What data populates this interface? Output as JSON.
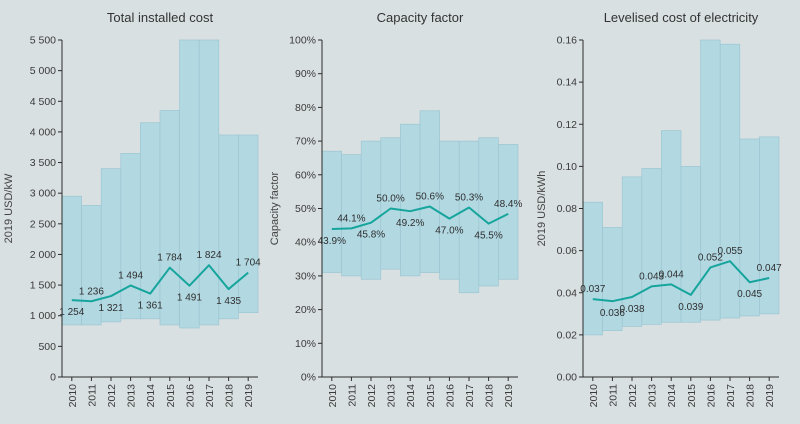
{
  "page": {
    "background": "#d9e0e2"
  },
  "colors": {
    "band_fill": "#b2d8e2",
    "band_stroke": "#9cc6d2",
    "line": "#16a59c",
    "axis_line": "#2b2b2b",
    "text": "#3a3a3a",
    "title": "#333333"
  },
  "chart_data": [
    {
      "type": "area",
      "subtype": "range-band-with-average-line",
      "title": "Total installed cost",
      "ylabel": "2019 USD/kW",
      "legend_position": "none",
      "grid": false,
      "categories": [
        "2010",
        "2011",
        "2012",
        "2013",
        "2014",
        "2015",
        "2016",
        "2017",
        "2018",
        "2019"
      ],
      "ylim": [
        0,
        5500
      ],
      "y_tick_step": 500,
      "y_tick_labels": [
        "0",
        "500",
        "1 000",
        "1 500",
        "2 000",
        "2 500",
        "3 000",
        "3 500",
        "4 000",
        "4 500",
        "5 000",
        "5 500"
      ],
      "band_low": [
        850,
        850,
        900,
        950,
        950,
        850,
        800,
        850,
        950,
        1050
      ],
      "band_high": [
        2950,
        2800,
        3400,
        3650,
        4150,
        4350,
        5500,
        5500,
        3950,
        3950
      ],
      "series": [
        {
          "name": "weighted-average",
          "values": [
            1254,
            1236,
            1321,
            1494,
            1361,
            1784,
            1491,
            1824,
            1435,
            1704
          ]
        }
      ],
      "point_labels": [
        "1 254",
        "1 236",
        "1 321",
        "1 494",
        "1 361",
        "1 784",
        "1 491",
        "1 824",
        "1 435",
        "1 704"
      ],
      "label_side": [
        "below",
        "above",
        "below",
        "above",
        "below",
        "above",
        "below",
        "above",
        "below",
        "above"
      ]
    },
    {
      "type": "area",
      "subtype": "range-band-with-average-line",
      "title": "Capacity factor",
      "ylabel": "Capacity factor",
      "legend_position": "none",
      "grid": false,
      "categories": [
        "2010",
        "2011",
        "2012",
        "2013",
        "2014",
        "2015",
        "2016",
        "2017",
        "2018",
        "2019"
      ],
      "ylim": [
        0,
        100
      ],
      "y_tick_step": 10,
      "y_tick_labels": [
        "0%",
        "10%",
        "20%",
        "30%",
        "40%",
        "50%",
        "60%",
        "70%",
        "80%",
        "90%",
        "100%"
      ],
      "band_low": [
        31,
        30,
        29,
        32,
        30,
        31,
        29,
        25,
        27,
        29
      ],
      "band_high": [
        67,
        66,
        70,
        71,
        75,
        79,
        70,
        70,
        71,
        69
      ],
      "series": [
        {
          "name": "weighted-average",
          "values": [
            43.9,
            44.1,
            45.8,
            50.0,
            49.2,
            50.6,
            47.0,
            50.3,
            45.5,
            48.4
          ]
        }
      ],
      "point_labels": [
        "43.9%",
        "44.1%",
        "45.8%",
        "50.0%",
        "49.2%",
        "50.6%",
        "47.0%",
        "50.3%",
        "45.5%",
        "48.4%"
      ],
      "label_side": [
        "below",
        "above",
        "below",
        "above",
        "below",
        "above",
        "below",
        "above",
        "below",
        "above"
      ]
    },
    {
      "type": "area",
      "subtype": "range-band-with-average-line",
      "title": "Levelised cost of electricity",
      "ylabel": "2019 USD/kWh",
      "legend_position": "none",
      "grid": false,
      "categories": [
        "2010",
        "2011",
        "2012",
        "2013",
        "2014",
        "2015",
        "2016",
        "2017",
        "2018",
        "2019"
      ],
      "ylim": [
        0,
        0.16
      ],
      "y_tick_step": 0.02,
      "y_tick_labels": [
        "0.00",
        "0.02",
        "0.04",
        "0.06",
        "0.08",
        "0.10",
        "0.12",
        "0.14",
        "0.16"
      ],
      "band_low": [
        0.02,
        0.022,
        0.024,
        0.025,
        0.026,
        0.026,
        0.027,
        0.028,
        0.029,
        0.03
      ],
      "band_high": [
        0.083,
        0.071,
        0.095,
        0.099,
        0.117,
        0.1,
        0.16,
        0.158,
        0.113,
        0.114
      ],
      "series": [
        {
          "name": "weighted-average",
          "values": [
            0.037,
            0.036,
            0.038,
            0.043,
            0.044,
            0.039,
            0.052,
            0.055,
            0.045,
            0.047
          ]
        }
      ],
      "point_labels": [
        "0.037",
        "0.036",
        "0.038",
        "0.043",
        "0.044",
        "0.039",
        "0.052",
        "0.055",
        "0.045",
        "0.047"
      ],
      "label_side": [
        "above",
        "below",
        "below",
        "above",
        "above",
        "below",
        "above",
        "above",
        "below",
        "above"
      ]
    }
  ]
}
